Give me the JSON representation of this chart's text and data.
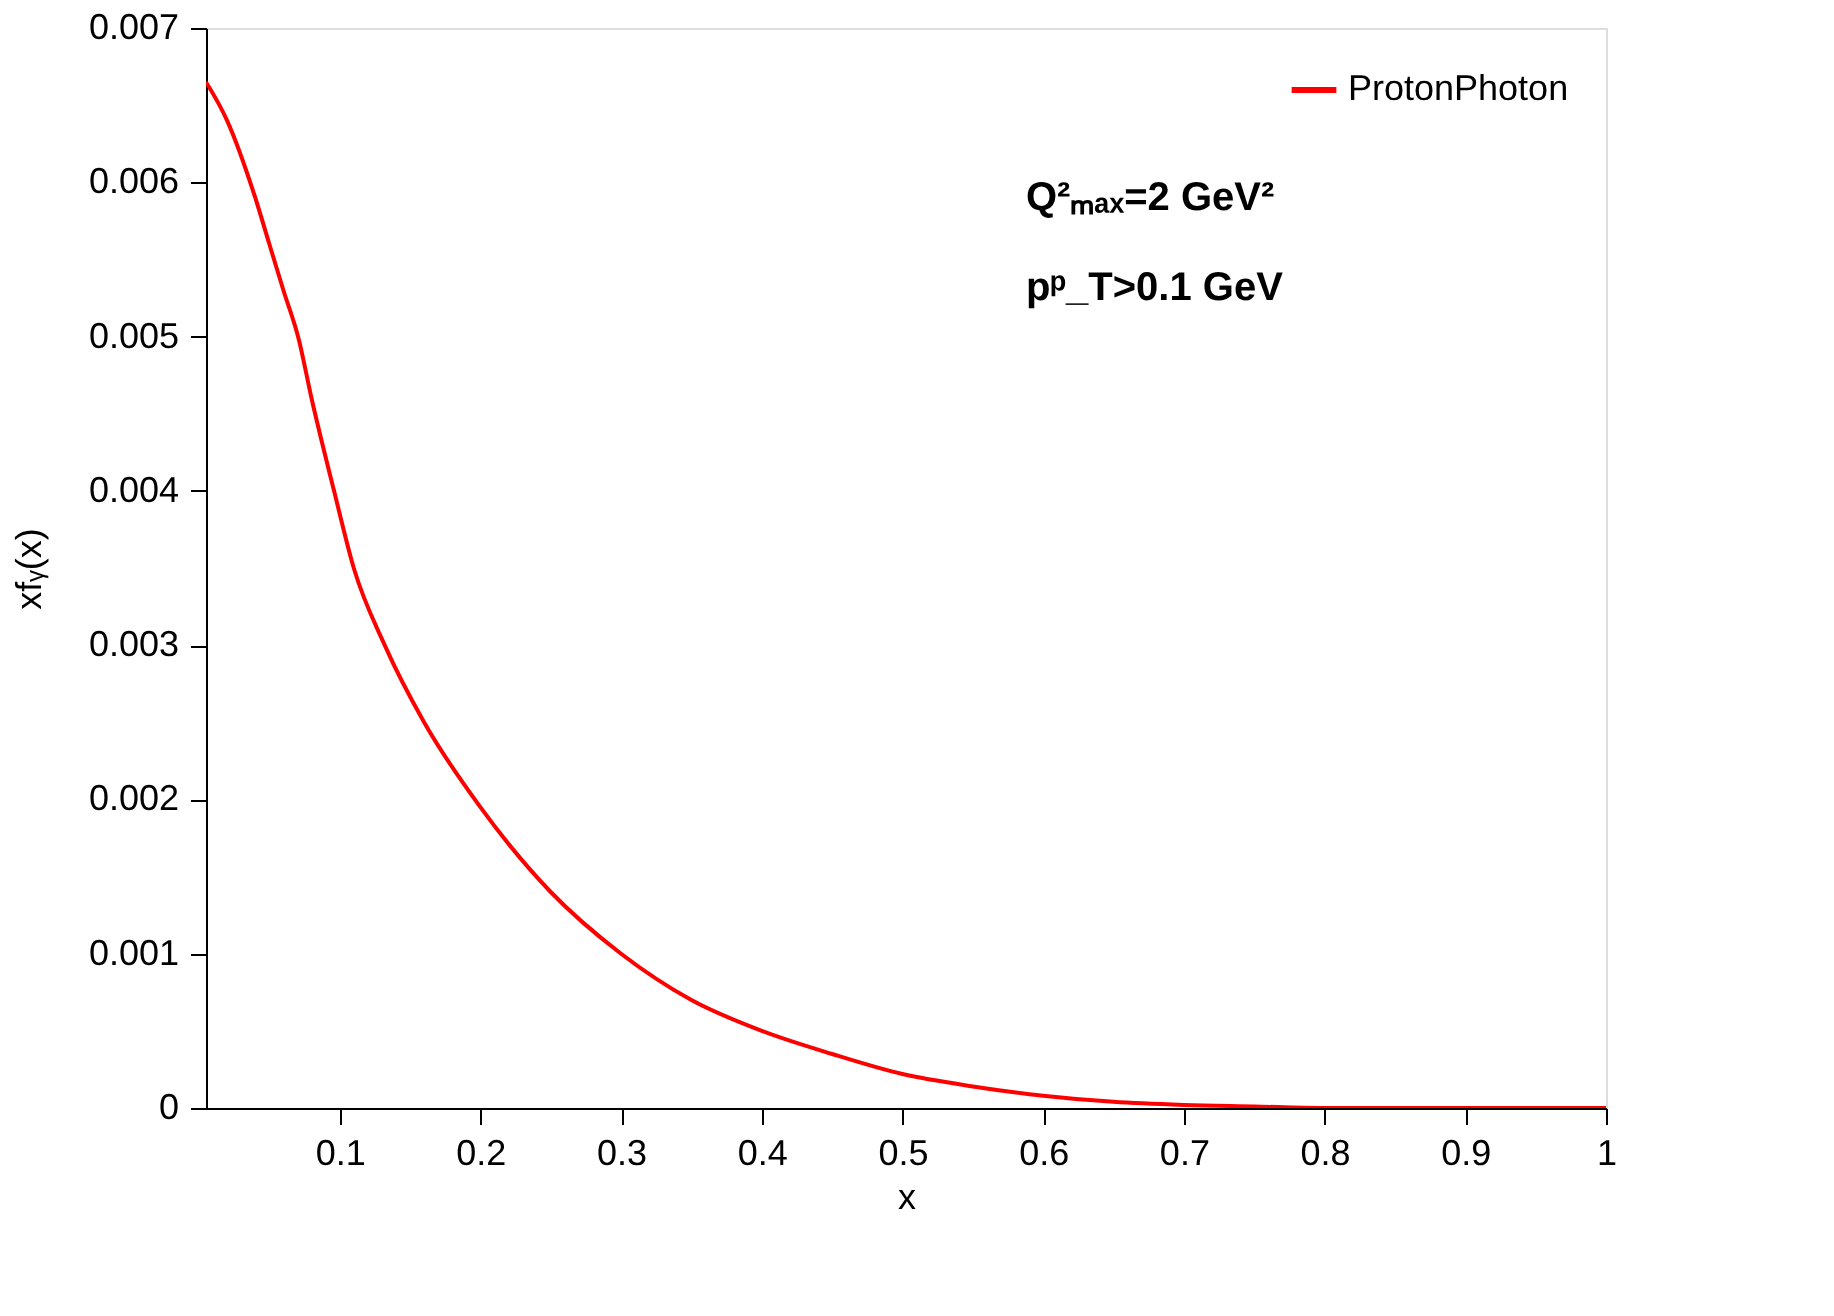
{
  "chart_data": {
    "type": "line",
    "xlabel": "x",
    "ylabel": "xfᵧ(x)",
    "x": [
      0.005,
      0.02,
      0.04,
      0.05,
      0.06,
      0.071,
      0.08,
      0.096,
      0.11,
      0.132,
      0.16,
      0.2,
      0.25,
      0.3,
      0.35,
      0.4,
      0.45,
      0.5,
      0.55,
      0.6,
      0.65,
      0.7,
      0.75,
      0.8,
      0.9,
      1.0
    ],
    "series": [
      {
        "name": "ProtonPhoton",
        "color": "#ff0000",
        "values": [
          0.00665,
          0.0064,
          0.0059,
          0.0056,
          0.0053,
          0.00498,
          0.0046,
          0.004,
          0.0035,
          0.003,
          0.0025,
          0.00195,
          0.0014,
          0.001,
          0.0007,
          0.0005,
          0.00035,
          0.00022,
          0.00014,
          8e-05,
          4e-05,
          2e-05,
          1e-05,
          0.0,
          0.0,
          0.0
        ]
      }
    ],
    "xlim": [
      0.005,
      1
    ],
    "xticks": [
      0.1,
      0.2,
      0.3,
      0.4,
      0.5,
      0.6,
      0.7,
      0.8,
      0.9,
      1
    ],
    "ylim": [
      0,
      0.007
    ],
    "yticks": [
      0,
      0.001,
      0.002,
      0.003,
      0.004,
      0.005,
      0.006,
      0.007
    ],
    "annotations": [
      "Q²ₘₐₓ=2 GeV²",
      "pᵖ_T>0.1 GeV"
    ],
    "legend": "top right",
    "grid": false,
    "marker": "none",
    "line_style": "solid"
  }
}
